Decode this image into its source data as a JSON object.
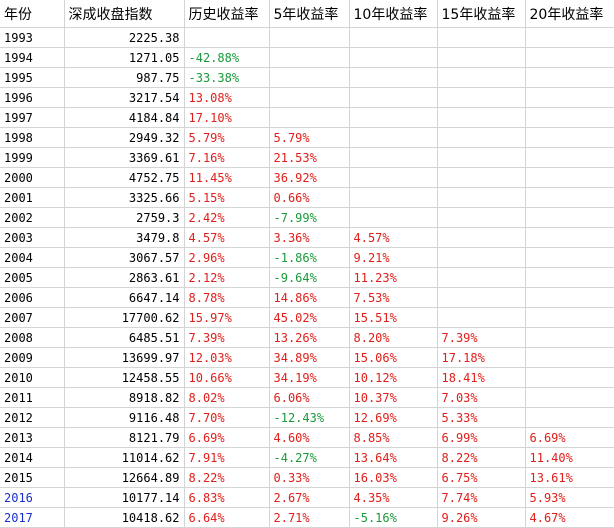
{
  "headers": [
    "年份",
    "深成收盘指数",
    "历史收益率",
    "5年收益率",
    "10年收益率",
    "15年收益率",
    "20年收益率"
  ],
  "colors": {
    "positive": "#e0201b",
    "negative": "#1a9a3a",
    "highlight_year": "#1a2fd0"
  },
  "rows": [
    {
      "year": "1993",
      "index": "2225.38",
      "hist": "",
      "r5": "",
      "r10": "",
      "r15": "",
      "r20": "",
      "year_blue": false
    },
    {
      "year": "1994",
      "index": "1271.05",
      "hist": "-42.88%",
      "r5": "",
      "r10": "",
      "r15": "",
      "r20": "",
      "year_blue": false
    },
    {
      "year": "1995",
      "index": "987.75",
      "hist": "-33.38%",
      "r5": "",
      "r10": "",
      "r15": "",
      "r20": "",
      "year_blue": false
    },
    {
      "year": "1996",
      "index": "3217.54",
      "hist": "13.08%",
      "r5": "",
      "r10": "",
      "r15": "",
      "r20": "",
      "year_blue": false
    },
    {
      "year": "1997",
      "index": "4184.84",
      "hist": "17.10%",
      "r5": "",
      "r10": "",
      "r15": "",
      "r20": "",
      "year_blue": false
    },
    {
      "year": "1998",
      "index": "2949.32",
      "hist": "5.79%",
      "r5": "5.79%",
      "r10": "",
      "r15": "",
      "r20": "",
      "year_blue": false
    },
    {
      "year": "1999",
      "index": "3369.61",
      "hist": "7.16%",
      "r5": "21.53%",
      "r10": "",
      "r15": "",
      "r20": "",
      "year_blue": false
    },
    {
      "year": "2000",
      "index": "4752.75",
      "hist": "11.45%",
      "r5": "36.92%",
      "r10": "",
      "r15": "",
      "r20": "",
      "year_blue": false
    },
    {
      "year": "2001",
      "index": "3325.66",
      "hist": "5.15%",
      "r5": "0.66%",
      "r10": "",
      "r15": "",
      "r20": "",
      "year_blue": false
    },
    {
      "year": "2002",
      "index": "2759.3",
      "hist": "2.42%",
      "r5": "-7.99%",
      "r10": "",
      "r15": "",
      "r20": "",
      "year_blue": false
    },
    {
      "year": "2003",
      "index": "3479.8",
      "hist": "4.57%",
      "r5": "3.36%",
      "r10": "4.57%",
      "r15": "",
      "r20": "",
      "year_blue": false
    },
    {
      "year": "2004",
      "index": "3067.57",
      "hist": "2.96%",
      "r5": "-1.86%",
      "r10": "9.21%",
      "r15": "",
      "r20": "",
      "year_blue": false
    },
    {
      "year": "2005",
      "index": "2863.61",
      "hist": "2.12%",
      "r5": "-9.64%",
      "r10": "11.23%",
      "r15": "",
      "r20": "",
      "year_blue": false
    },
    {
      "year": "2006",
      "index": "6647.14",
      "hist": "8.78%",
      "r5": "14.86%",
      "r10": "7.53%",
      "r15": "",
      "r20": "",
      "year_blue": false
    },
    {
      "year": "2007",
      "index": "17700.62",
      "hist": "15.97%",
      "r5": "45.02%",
      "r10": "15.51%",
      "r15": "",
      "r20": "",
      "year_blue": false
    },
    {
      "year": "2008",
      "index": "6485.51",
      "hist": "7.39%",
      "r5": "13.26%",
      "r10": "8.20%",
      "r15": "7.39%",
      "r20": "",
      "year_blue": false
    },
    {
      "year": "2009",
      "index": "13699.97",
      "hist": "12.03%",
      "r5": "34.89%",
      "r10": "15.06%",
      "r15": "17.18%",
      "r20": "",
      "year_blue": false
    },
    {
      "year": "2010",
      "index": "12458.55",
      "hist": "10.66%",
      "r5": "34.19%",
      "r10": "10.12%",
      "r15": "18.41%",
      "r20": "",
      "year_blue": false
    },
    {
      "year": "2011",
      "index": "8918.82",
      "hist": "8.02%",
      "r5": "6.06%",
      "r10": "10.37%",
      "r15": "7.03%",
      "r20": "",
      "year_blue": false
    },
    {
      "year": "2012",
      "index": "9116.48",
      "hist": "7.70%",
      "r5": "-12.43%",
      "r10": "12.69%",
      "r15": "5.33%",
      "r20": "",
      "year_blue": false
    },
    {
      "year": "2013",
      "index": "8121.79",
      "hist": "6.69%",
      "r5": "4.60%",
      "r10": "8.85%",
      "r15": "6.99%",
      "r20": "6.69%",
      "year_blue": false
    },
    {
      "year": "2014",
      "index": "11014.62",
      "hist": "7.91%",
      "r5": "-4.27%",
      "r10": "13.64%",
      "r15": "8.22%",
      "r20": "11.40%",
      "year_blue": false
    },
    {
      "year": "2015",
      "index": "12664.89",
      "hist": "8.22%",
      "r5": "0.33%",
      "r10": "16.03%",
      "r15": "6.75%",
      "r20": "13.61%",
      "year_blue": false
    },
    {
      "year": "2016",
      "index": "10177.14",
      "hist": "6.83%",
      "r5": "2.67%",
      "r10": "4.35%",
      "r15": "7.74%",
      "r20": "5.93%",
      "year_blue": true
    },
    {
      "year": "2017",
      "index": "10418.62",
      "hist": "6.64%",
      "r5": "2.71%",
      "r10": "-5.16%",
      "r15": "9.26%",
      "r20": "4.67%",
      "year_blue": true
    }
  ]
}
